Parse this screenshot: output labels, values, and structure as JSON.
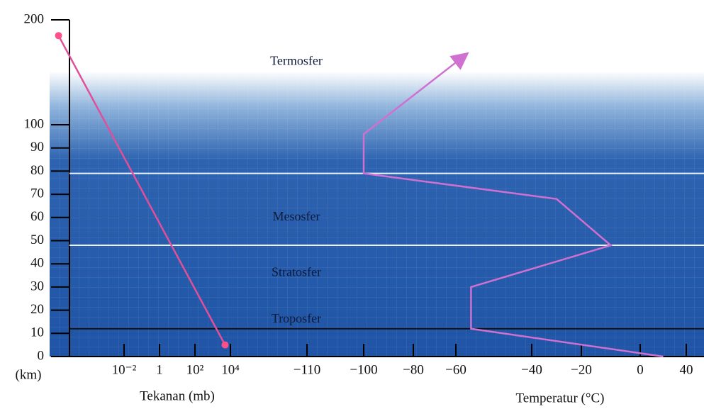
{
  "chart_data": {
    "type": "line",
    "y_label": "(km)",
    "ylim": [
      0,
      200
    ],
    "yticks": [
      0,
      10,
      20,
      30,
      40,
      50,
      60,
      70,
      80,
      90,
      100,
      200
    ],
    "pressure": {
      "label": "Tekanan (mb)",
      "log": true,
      "color": "#e0509a",
      "ticks": [
        {
          "value": 0.01,
          "label": "10⁻²"
        },
        1,
        {
          "value": 100,
          "label": "10²"
        },
        {
          "value": 10000,
          "label": "10⁴"
        }
      ],
      "altitude": [
        185,
        5
      ],
      "values": [
        2e-06,
        5000
      ]
    },
    "temperature": {
      "label": "Temperatur (°C)",
      "color": "#d070d0",
      "ticks": [
        {
          "value": -110,
          "label": "−110"
        },
        {
          "value": -100,
          "label": "−100"
        },
        {
          "value": -80,
          "label": "−80"
        },
        {
          "value": -60,
          "label": "−60"
        },
        {
          "value": -40,
          "label": "−40"
        },
        {
          "value": -20,
          "label": "−20"
        },
        0,
        40
      ],
      "altitude": [
        0,
        12,
        30,
        48,
        68,
        79,
        96,
        165
      ],
      "values": [
        20,
        -56,
        -56,
        -10,
        -30,
        -100,
        -100,
        -58
      ]
    },
    "layers": [
      {
        "name": "Termosfer",
        "altitude": 160
      },
      {
        "name": "Mesosfer",
        "altitude": 60
      },
      {
        "name": "Stratosfer",
        "altitude": 36
      },
      {
        "name": "Troposfer",
        "altitude": 16
      }
    ],
    "boundaries": [
      {
        "altitude": 12,
        "color": "#111111"
      },
      {
        "altitude": 48,
        "color": "#e8f4ff"
      },
      {
        "altitude": 79,
        "color": "#e8f4ff"
      }
    ]
  }
}
